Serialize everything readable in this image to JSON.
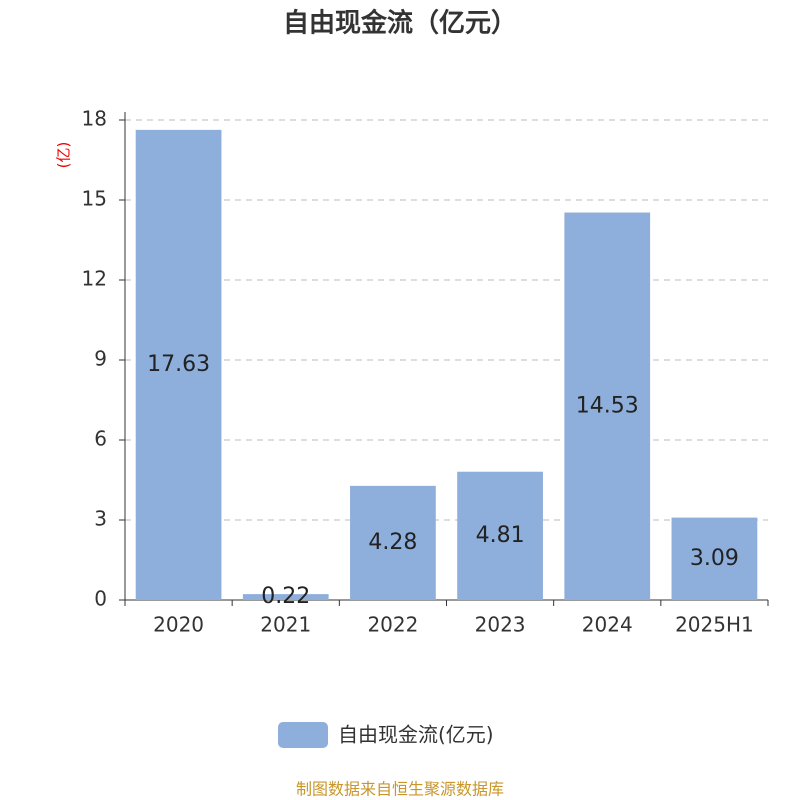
{
  "chart_data": {
    "type": "bar",
    "title": "自由现金流（亿元）",
    "y_label": "(亿)",
    "categories": [
      "2020",
      "2021",
      "2022",
      "2023",
      "2024",
      "2025H1"
    ],
    "series": [
      {
        "name": "自由现金流(亿元)",
        "color": "#8eaedb",
        "values": [
          17.63,
          0.22,
          4.28,
          4.81,
          14.53,
          3.09
        ]
      }
    ],
    "ylim": [
      0,
      18
    ],
    "yticks": [
      0,
      3,
      6,
      9,
      12,
      15,
      18
    ],
    "grid": true,
    "source": "制图数据来自恒生聚源数据库"
  }
}
